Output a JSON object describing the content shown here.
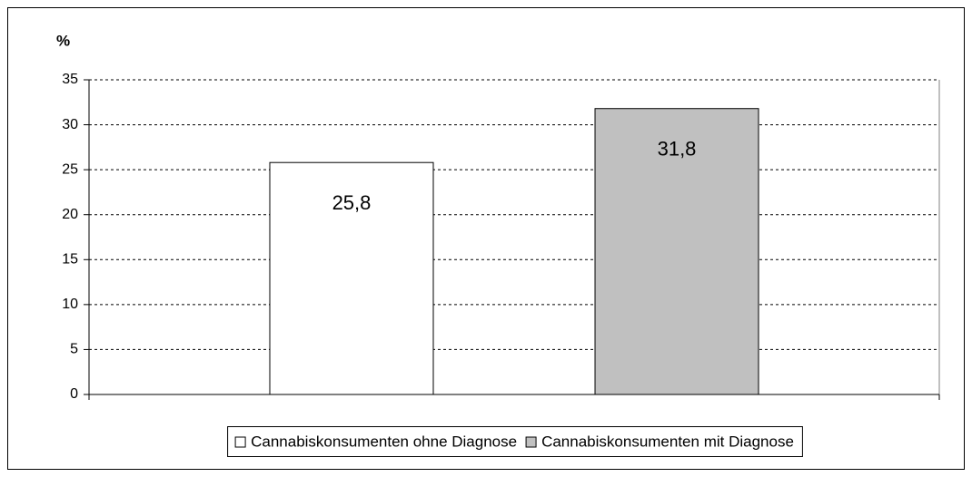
{
  "chart_data": {
    "type": "bar",
    "ylabel": "%",
    "categories": [
      null
    ],
    "series": [
      {
        "name": "Cannabiskonsumenten ohne Diagnose",
        "color": "#ffffff",
        "values": [
          25.8
        ],
        "value_labels": [
          "25,8"
        ]
      },
      {
        "name": "Cannabiskonsumenten mit Diagnose",
        "color": "#c0c0c0",
        "values": [
          31.8
        ],
        "value_labels": [
          "31,8"
        ]
      }
    ],
    "ylim": [
      0,
      35
    ],
    "yticks": [
      0,
      5,
      10,
      15,
      20,
      25,
      30,
      35
    ],
    "grid": true,
    "legend": "bottom"
  }
}
